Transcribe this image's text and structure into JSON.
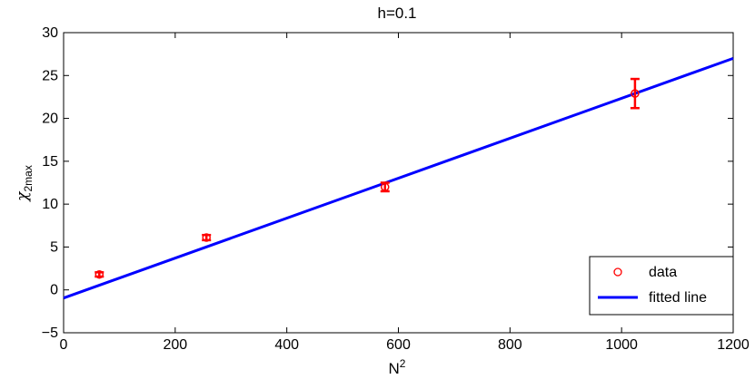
{
  "chart_data": {
    "type": "scatter",
    "title": "h=0.1",
    "xlabel": "N",
    "xlabel_sup": "2",
    "ylabel": "χ",
    "ylabel_sub": "2max",
    "xlim": [
      0,
      1200
    ],
    "ylim": [
      -5,
      30
    ],
    "xticks": [
      0,
      200,
      400,
      600,
      800,
      1000,
      1200
    ],
    "yticks": [
      -5,
      0,
      5,
      10,
      15,
      20,
      25,
      30
    ],
    "grid": false,
    "legend_position": "bottom-right",
    "series": [
      {
        "name": "data",
        "kind": "points-with-errorbars",
        "color": "#ff0000",
        "x": [
          64,
          256,
          576,
          1024
        ],
        "y": [
          1.8,
          6.1,
          12.0,
          22.9
        ],
        "err": [
          0.25,
          0.3,
          0.5,
          1.7
        ]
      },
      {
        "name": "fitted line",
        "kind": "line",
        "color": "#0000ff",
        "x": [
          0,
          1200
        ],
        "y": [
          -0.95,
          27.0
        ]
      }
    ]
  }
}
